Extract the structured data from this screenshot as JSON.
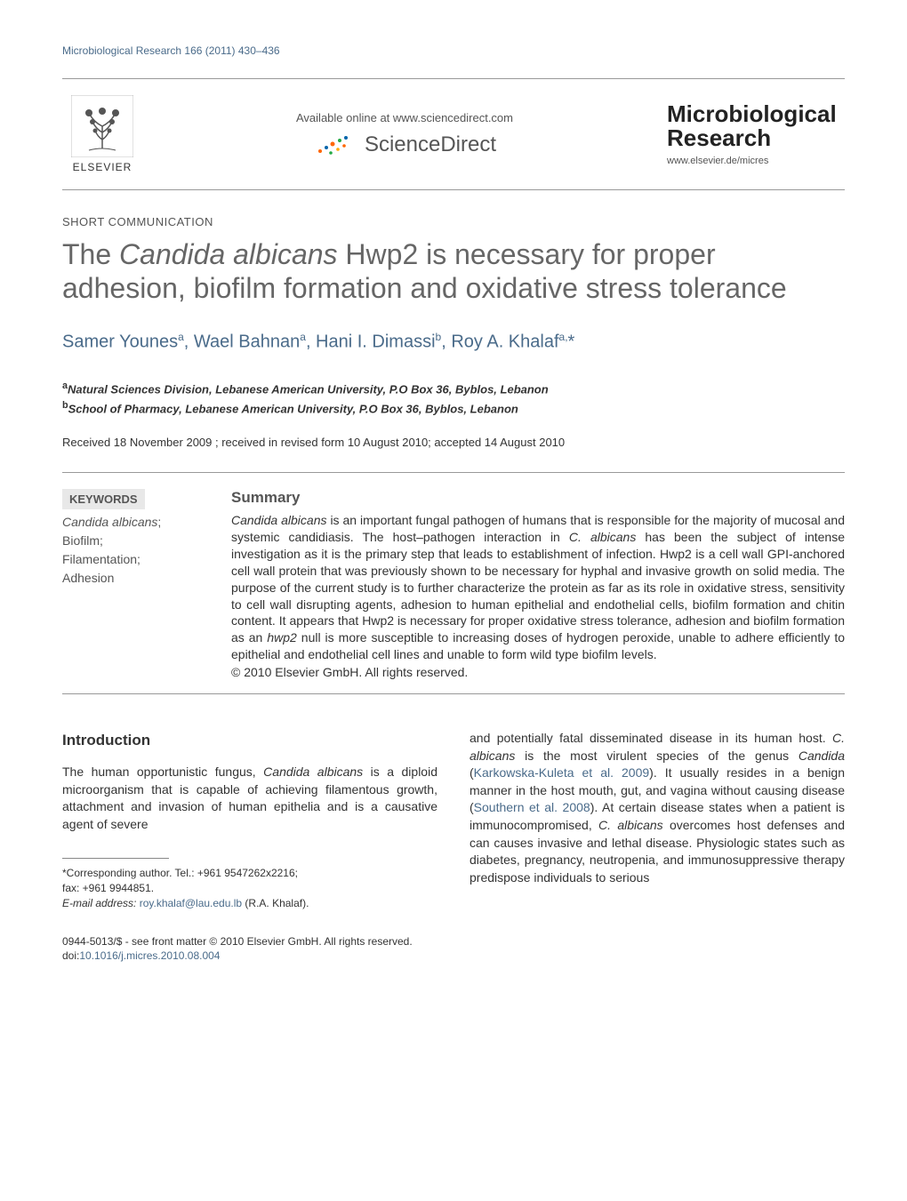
{
  "running_header": "Microbiological Research 166 (2011) 430–436",
  "header": {
    "elsevier_label": "ELSEVIER",
    "available_online": "Available online at www.sciencedirect.com",
    "sciencedirect": "ScienceDirect",
    "journal_title_line1": "Microbiological",
    "journal_title_line2": "Research",
    "journal_url": "www.elsevier.de/micres"
  },
  "article": {
    "type": "SHORT COMMUNICATION",
    "title_pre": "The ",
    "title_italic": "Candida albicans",
    "title_post": " Hwp2 is necessary for proper adhesion, biofilm formation and oxidative stress tolerance",
    "authors_html": "Samer Younes<sup>a</sup>, Wael Bahnan<sup>a</sup>, Hani I. Dimassi<sup>b</sup>, Roy A. Khalaf<sup>a,</sup>*",
    "affiliations": [
      {
        "sup": "a",
        "text": "Natural Sciences Division, Lebanese American University, P.O Box 36, Byblos, Lebanon"
      },
      {
        "sup": "b",
        "text": "School of Pharmacy, Lebanese American University, P.O Box 36, Byblos, Lebanon"
      }
    ],
    "dates": "Received 18 November 2009 ; received in revised form 10 August 2010; accepted 14 August 2010"
  },
  "keywords": {
    "heading": "KEYWORDS",
    "items": [
      {
        "text": "Candida albicans",
        "italic": true,
        "suffix": ";"
      },
      {
        "text": "Biofilm",
        "italic": false,
        "suffix": ";"
      },
      {
        "text": "Filamentation",
        "italic": false,
        "suffix": ";"
      },
      {
        "text": "Adhesion",
        "italic": false,
        "suffix": ""
      }
    ]
  },
  "summary": {
    "heading": "Summary",
    "text_parts": [
      {
        "t": "Candida albicans",
        "i": true
      },
      {
        "t": " is an important fungal pathogen of humans that is responsible for the majority of mucosal and systemic candidiasis. The host–pathogen interaction in ",
        "i": false
      },
      {
        "t": "C. albicans",
        "i": true
      },
      {
        "t": " has been the subject of intense investigation as it is the primary step that leads to establishment of infection. Hwp2 is a cell wall GPI-anchored cell wall protein that was previously shown to be necessary for hyphal and invasive growth on solid media. The purpose of the current study is to further characterize the protein as far as its role in oxidative stress, sensitivity to cell wall disrupting agents, adhesion to human epithelial and endothelial cells, biofilm formation and chitin content. It appears that Hwp2 is necessary for proper oxidative stress tolerance, adhesion and biofilm formation as an ",
        "i": false
      },
      {
        "t": "hwp2",
        "i": true
      },
      {
        "t": " null is more susceptible to increasing doses of hydrogen peroxide, unable to adhere efficiently to epithelial and endothelial cell lines and unable to form wild type biofilm levels.",
        "i": false
      }
    ],
    "copyright": "© 2010 Elsevier GmbH. All rights reserved."
  },
  "body": {
    "intro_heading": "Introduction",
    "col1_parts": [
      {
        "t": "The human opportunistic fungus, ",
        "i": false
      },
      {
        "t": "Candida albicans",
        "i": true
      },
      {
        "t": " is a diploid microorganism that is capable of achieving filamentous growth, attachment and invasion of human epithelia and is a causative agent of severe",
        "i": false
      }
    ],
    "col2_parts": [
      {
        "t": "and potentially fatal disseminated disease in its human host. ",
        "i": false
      },
      {
        "t": "C. albicans",
        "i": true
      },
      {
        "t": " is the most virulent species of the genus ",
        "i": false
      },
      {
        "t": "Candida",
        "i": true
      },
      {
        "t": " (",
        "i": false
      },
      {
        "t": "Karkowska-Kuleta et al. 2009",
        "i": false,
        "link": true
      },
      {
        "t": "). It usually resides in a benign manner in the host mouth, gut, and vagina without causing disease (",
        "i": false
      },
      {
        "t": "Southern et al. 2008",
        "i": false,
        "link": true
      },
      {
        "t": "). At certain disease states when a patient is immunocompromised, ",
        "i": false
      },
      {
        "t": "C. albicans",
        "i": true
      },
      {
        "t": " overcomes host defenses and can causes invasive and lethal disease. Physiologic states such as diabetes, pregnancy, neutropenia, and immunosuppressive therapy predispose individuals to serious",
        "i": false
      }
    ]
  },
  "corresponding": {
    "line1": "*Corresponding author. Tel.: +961 9547262x2216;",
    "line2": "fax: +961 9944851.",
    "email_label": "E-mail address:",
    "email": "roy.khalaf@lau.edu.lb",
    "email_suffix": " (R.A. Khalaf)."
  },
  "footer": {
    "line1": "0944-5013/$ - see front matter © 2010 Elsevier GmbH. All rights reserved.",
    "doi_label": "doi:",
    "doi": "10.1016/j.micres.2010.08.004"
  },
  "colors": {
    "link": "#4a6b8a",
    "title_gray": "#666666",
    "text": "#333333",
    "keyword_bg": "#e8e8e8",
    "elsevier_orange": "#ff6600"
  }
}
